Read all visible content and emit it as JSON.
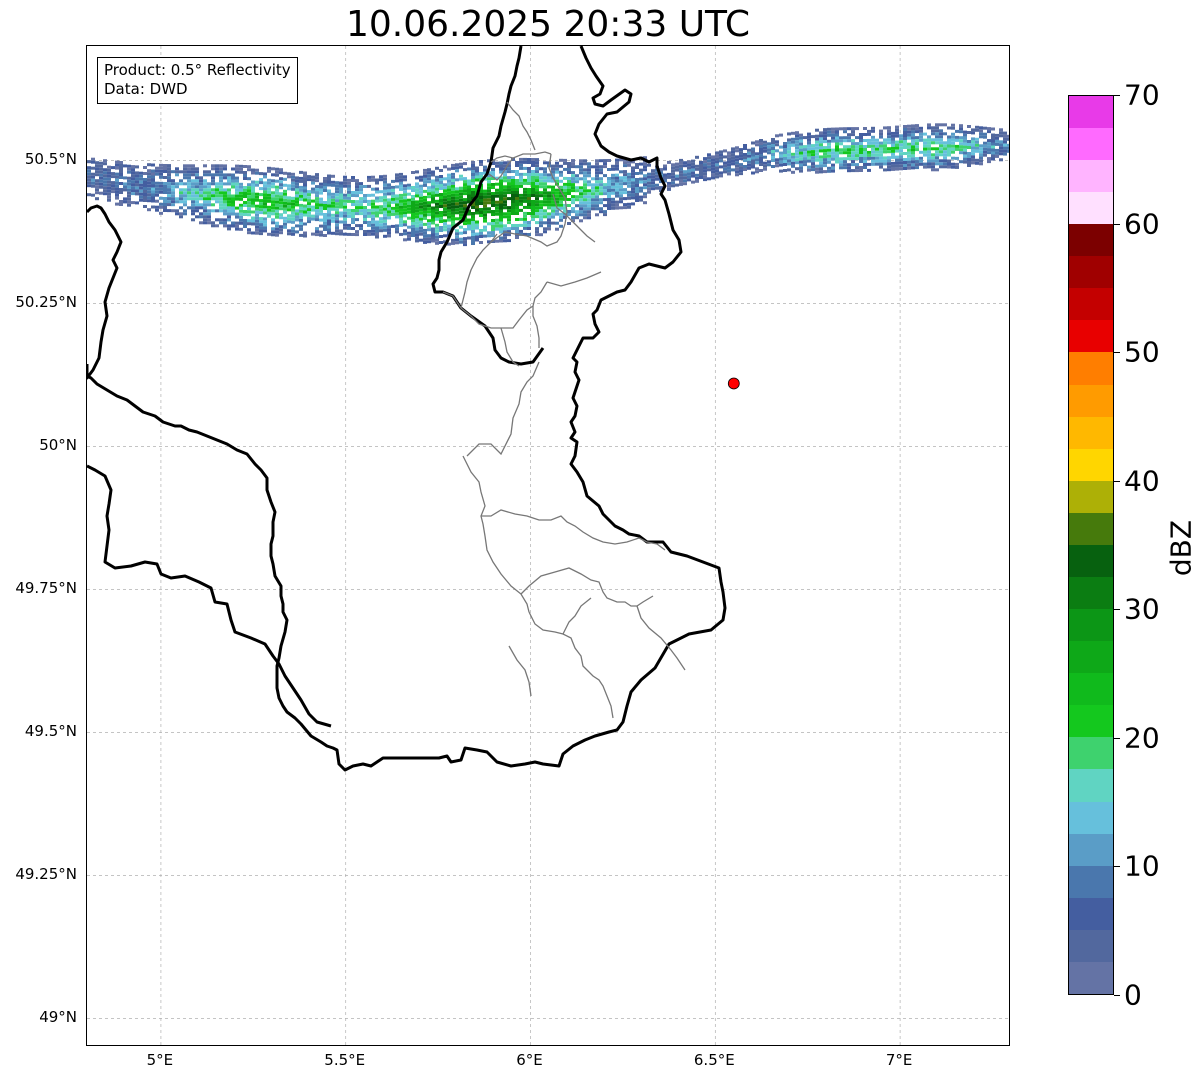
{
  "title": "10.06.2025 20:33 UTC",
  "info": {
    "product": "Product: 0.5° Reflectivity",
    "data": "Data: DWD"
  },
  "map": {
    "lon_range": [
      4.8,
      7.3
    ],
    "lat_range": [
      48.95,
      50.7
    ],
    "lon_ticks": [
      {
        "value": 5.0,
        "label": "5°E"
      },
      {
        "value": 5.5,
        "label": "5.5°E"
      },
      {
        "value": 6.0,
        "label": "6°E"
      },
      {
        "value": 6.5,
        "label": "6.5°E"
      },
      {
        "value": 7.0,
        "label": "7°E"
      }
    ],
    "lat_ticks": [
      {
        "value": 49.0,
        "label": "49°N"
      },
      {
        "value": 49.25,
        "label": "49.25°N"
      },
      {
        "value": 49.5,
        "label": "49.5°N"
      },
      {
        "value": 49.75,
        "label": "49.75°N"
      },
      {
        "value": 50.0,
        "label": "50°N"
      },
      {
        "value": 50.25,
        "label": "50.25°N"
      },
      {
        "value": 50.5,
        "label": "50.5°N"
      }
    ],
    "radar_site": {
      "lon": 6.55,
      "lat": 50.11,
      "color": "#ff0000"
    },
    "echo_band": {
      "west": {
        "lon": 4.8,
        "lat": 50.47
      },
      "east": {
        "lon": 7.3,
        "lat": 50.53
      },
      "max_dbz": 35
    }
  },
  "colorbar": {
    "label": "dBZ",
    "min": 0,
    "max": 70,
    "tick_labels": [
      "0",
      "10",
      "20",
      "30",
      "40",
      "50",
      "60",
      "70"
    ],
    "colors": [
      "#6473a5",
      "#52689e",
      "#445ea0",
      "#4a77ad",
      "#5a9dc7",
      "#66c0dc",
      "#60d4c2",
      "#3ed26e",
      "#14c81e",
      "#10ba1c",
      "#0ea818",
      "#0c9616",
      "#0b7d12",
      "#07610f",
      "#467a0c",
      "#adb006",
      "#ffd600",
      "#ffb800",
      "#ff9b00",
      "#ff7e00",
      "#e80000",
      "#c40000",
      "#a00000",
      "#7c0000",
      "#ffe0ff",
      "#ffb4ff",
      "#ff6aff",
      "#e83ae8"
    ]
  }
}
